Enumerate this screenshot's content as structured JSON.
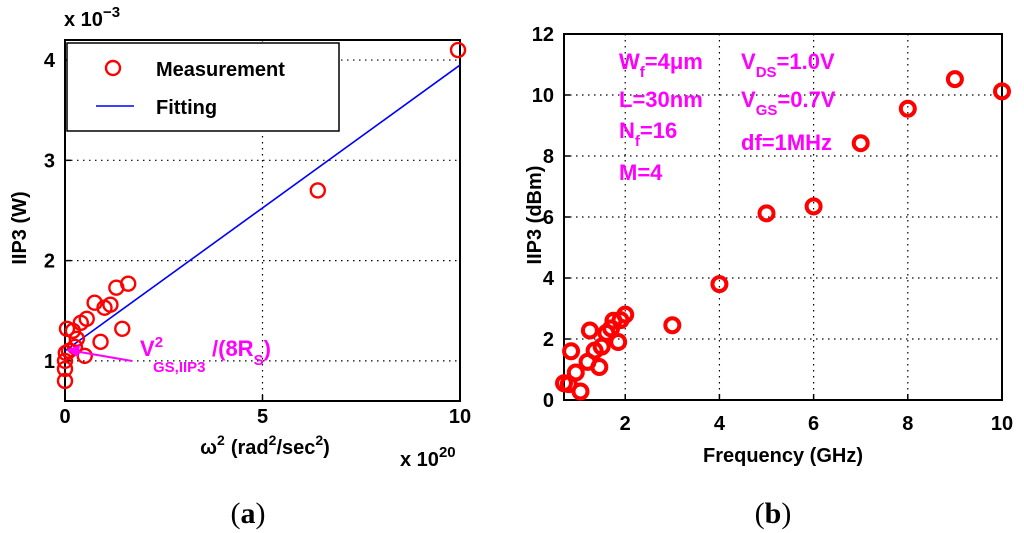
{
  "colors": {
    "marker": "#ff0000",
    "fit": "#0000ff",
    "annotation": "#ff00ff",
    "axis": "#000000"
  },
  "chart_data": [
    {
      "type": "scatter",
      "panel_label": "a",
      "title": "",
      "xlabel": "ω",
      "xlabel_unit": "(rad",
      "xlabel_unit2": "/sec",
      "xlabel_close": ")",
      "xlabel_sup": "2",
      "ylabel": "IIP3 (W)",
      "xlim": [
        0,
        10
      ],
      "ylim": [
        0.6,
        4.2
      ],
      "x_multiplier": {
        "base": "x 10",
        "exp": "20"
      },
      "y_multiplier": {
        "base": "x 10",
        "exp": "−3"
      },
      "xticks": [
        0,
        5,
        10
      ],
      "yticks": [
        1,
        2,
        3,
        4
      ],
      "grid": true,
      "legend": {
        "position": "top-left",
        "entries": [
          {
            "label": "Measurement",
            "marker": "circle",
            "color": "#ff0000"
          },
          {
            "label": "Fitting",
            "marker": "line",
            "color": "#0000ff"
          }
        ]
      },
      "series": [
        {
          "name": "Measurement",
          "points": [
            [
              0.0,
              0.8
            ],
            [
              0.0,
              0.92
            ],
            [
              0.0,
              1.0
            ],
            [
              0.02,
              1.08
            ],
            [
              0.05,
              1.32
            ],
            [
              0.1,
              1.1
            ],
            [
              0.2,
              1.3
            ],
            [
              0.25,
              1.14
            ],
            [
              0.3,
              1.22
            ],
            [
              0.4,
              1.38
            ],
            [
              0.5,
              1.05
            ],
            [
              0.55,
              1.42
            ],
            [
              0.75,
              1.58
            ],
            [
              0.9,
              1.19
            ],
            [
              1.0,
              1.53
            ],
            [
              1.15,
              1.56
            ],
            [
              1.3,
              1.73
            ],
            [
              1.45,
              1.32
            ],
            [
              1.6,
              1.77
            ],
            [
              6.4,
              2.7
            ],
            [
              9.95,
              4.1
            ]
          ]
        },
        {
          "name": "Fitting",
          "line": [
            [
              0.0,
              1.1
            ],
            [
              10.0,
              3.95
            ]
          ]
        }
      ],
      "annotation": {
        "base": "V",
        "sup": "2",
        "sub": "GS,IIP3",
        "tail": "/(8R",
        "tail_sub": "S",
        "close": ")",
        "points_to": [
          0.0,
          0.96
        ]
      }
    },
    {
      "type": "scatter",
      "panel_label": "b",
      "title": "",
      "xlabel": "Frequency (GHz)",
      "ylabel": "IIP3 (dBm)",
      "xlim": [
        0.7,
        10
      ],
      "ylim": [
        0,
        12
      ],
      "xticks": [
        2,
        4,
        6,
        8,
        10
      ],
      "yticks": [
        0,
        2,
        4,
        6,
        8,
        10,
        12
      ],
      "grid": true,
      "series": [
        {
          "name": "IIP3",
          "points": [
            [
              0.7,
              0.55
            ],
            [
              0.8,
              0.52
            ],
            [
              0.85,
              1.6
            ],
            [
              0.95,
              0.9
            ],
            [
              1.05,
              0.28
            ],
            [
              1.2,
              1.25
            ],
            [
              1.25,
              2.28
            ],
            [
              1.35,
              1.62
            ],
            [
              1.45,
              1.08
            ],
            [
              1.5,
              1.75
            ],
            [
              1.6,
              2.2
            ],
            [
              1.7,
              2.35
            ],
            [
              1.75,
              2.6
            ],
            [
              1.85,
              1.9
            ],
            [
              1.9,
              2.62
            ],
            [
              2.0,
              2.8
            ],
            [
              3.0,
              2.45
            ],
            [
              4.0,
              3.8
            ],
            [
              5.0,
              6.12
            ],
            [
              6.0,
              6.35
            ],
            [
              7.0,
              8.42
            ],
            [
              8.0,
              9.55
            ],
            [
              9.0,
              10.52
            ],
            [
              10.0,
              10.12
            ]
          ]
        }
      ],
      "annotations": [
        {
          "base": "W",
          "sub": "f",
          "tail": "=4μm"
        },
        {
          "base": "L=30nm"
        },
        {
          "base": "N",
          "sub": "f",
          "tail": "=16"
        },
        {
          "base": "M=4"
        },
        {
          "base": "V",
          "sub": "DS",
          "tail": "=1.0V"
        },
        {
          "base": "V",
          "sub": "GS",
          "tail": "=0.7V"
        },
        {
          "base": "df=1MHz"
        }
      ]
    }
  ]
}
